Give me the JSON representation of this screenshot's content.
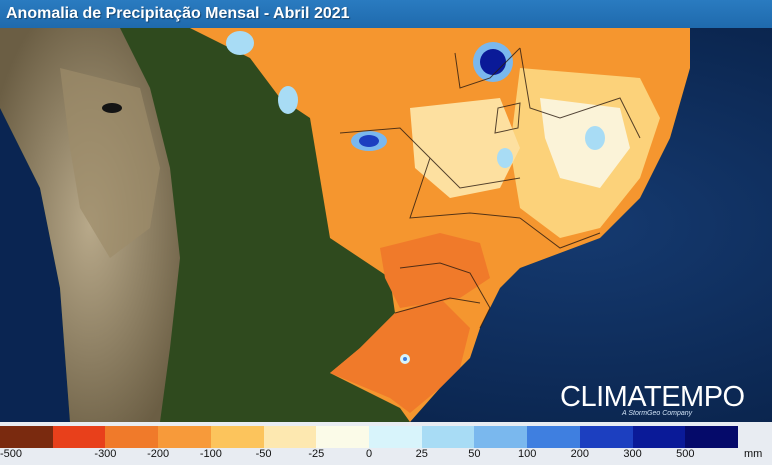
{
  "title": "Anomalia de Precipitação Mensal - Abril 2021",
  "logo": {
    "text": "CLIMATEMPO",
    "tagline": "A StormGeo Company"
  },
  "legend": {
    "colors": [
      "#7a2a0f",
      "#e8401b",
      "#f07a2a",
      "#f79a3a",
      "#fcc45c",
      "#fde8b0",
      "#fbfbe8",
      "#d8f4fb",
      "#a8dcf5",
      "#7ab8ee",
      "#3f7fe0",
      "#1c3fc0",
      "#0a1a98",
      "#050a6a"
    ],
    "labels": [
      "-500",
      "-300",
      "-200",
      "-100",
      "-50",
      "-25",
      "0",
      "25",
      "50",
      "100",
      "200",
      "300",
      "500"
    ],
    "unit": "mm"
  },
  "colors": {
    "ocean": "#0b2a5a",
    "land_green": "#2f4a1e",
    "land_tan": "#8a7a5a",
    "anomaly_orange": "#f5962f",
    "anomaly_light": "#fcd27a",
    "anomaly_blue": "#1c3fc0"
  }
}
